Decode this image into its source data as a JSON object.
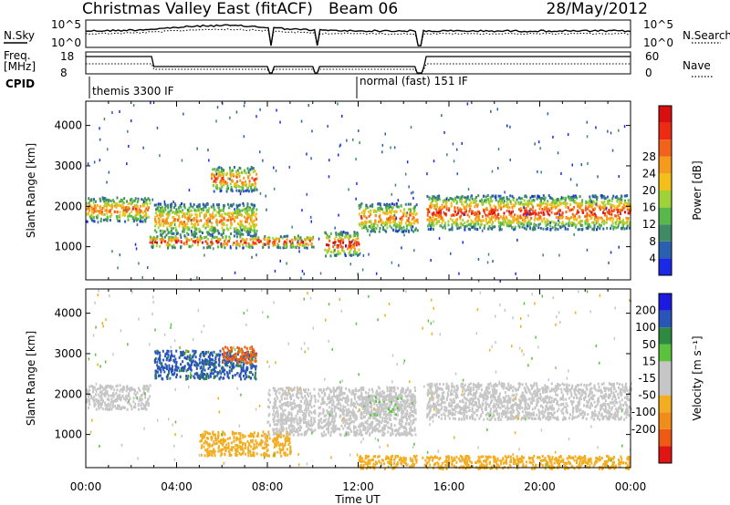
{
  "header": {
    "title": "Christmas Valley East (fitACF)",
    "beam": "Beam 06",
    "date": "28/May/2012"
  },
  "nsky": {
    "left_label": "N.Sky",
    "right_label": "N.Search",
    "left_ticks": [
      "10^5",
      "10^0"
    ],
    "right_ticks": [
      "10^5",
      "10^0"
    ]
  },
  "freq": {
    "left_label_1": "Freq.",
    "left_label_2": "[MHz]",
    "right_label": "Nave",
    "left_ticks": [
      "18",
      "8"
    ],
    "right_ticks": [
      "60",
      "0"
    ]
  },
  "cpid": {
    "label": "CPID",
    "modes": [
      {
        "start_hour": 0.0,
        "text": "themis 3300 IF"
      },
      {
        "start_hour": 12.0,
        "text": "normal (fast) 151 IF"
      }
    ]
  },
  "time_axis": {
    "label": "Time UT",
    "ticks": [
      "00:00",
      "04:00",
      "08:00",
      "12:00",
      "16:00",
      "20:00",
      "00:00"
    ],
    "range_hours": [
      0,
      24
    ]
  },
  "colors": {
    "power_scale": [
      "#1a29e6",
      "#2b5fb0",
      "#3f8a64",
      "#58b84a",
      "#9fd236",
      "#f2c018",
      "#f59a1a",
      "#f2621a",
      "#ee2a14",
      "#d90e0e"
    ],
    "velocity_scale": [
      "#e11414",
      "#ee5a16",
      "#f08c1a",
      "#f3ad20",
      "#c6c6c6",
      "#c6c6c6",
      "#5cc23c",
      "#2e8a40",
      "#2a55b8",
      "#1c1ae0"
    ]
  },
  "chart_data": [
    {
      "type": "heatmap",
      "name": "power",
      "ylabel": "Slant Range [km]",
      "yticks": [
        1000,
        2000,
        3000,
        4000
      ],
      "ylim": [
        180,
        4600
      ],
      "xlim": [
        0,
        24
      ],
      "colorbar": {
        "label": "Power [dB]",
        "ticks": [
          4,
          8,
          12,
          16,
          20,
          24,
          28
        ],
        "range": [
          0,
          32
        ]
      },
      "echo_bands": [
        {
          "hours": [
            0.0,
            2.8
          ],
          "range_km": [
            1650,
            2250
          ],
          "peak_db": 22
        },
        {
          "hours": [
            2.8,
            10.0
          ],
          "range_km": [
            1000,
            1300
          ],
          "peak_db": 28
        },
        {
          "hours": [
            3.0,
            7.5
          ],
          "range_km": [
            1300,
            2100
          ],
          "peak_db": 20
        },
        {
          "hours": [
            5.5,
            7.5
          ],
          "range_km": [
            2400,
            3000
          ],
          "peak_db": 24
        },
        {
          "hours": [
            10.5,
            12.0
          ],
          "range_km": [
            800,
            1400
          ],
          "peak_db": 28
        },
        {
          "hours": [
            12.0,
            14.7
          ],
          "range_km": [
            1400,
            2100
          ],
          "peak_db": 22
        },
        {
          "hours": [
            15.0,
            24.0
          ],
          "range_km": [
            1450,
            2300
          ],
          "peak_db": 26
        }
      ],
      "data_gaps_hours": [
        [
          8.1,
          8.2
        ],
        [
          10.1,
          10.2
        ],
        [
          14.6,
          14.8
        ]
      ]
    },
    {
      "type": "heatmap",
      "name": "velocity",
      "ylabel": "Slant Range [km]",
      "yticks": [
        1000,
        2000,
        3000,
        4000
      ],
      "ylim": [
        180,
        4600
      ],
      "xlim": [
        0,
        24
      ],
      "colorbar": {
        "label": "Velocity [m s⁻¹]",
        "ticks": [
          200,
          100,
          50,
          15,
          -15,
          -50,
          -100,
          -200
        ],
        "range": [
          -250,
          250
        ]
      },
      "echo_bands": [
        {
          "hours": [
            0.0,
            2.8
          ],
          "range_km": [
            1650,
            2250
          ],
          "velocity": 0
        },
        {
          "hours": [
            3.0,
            7.5
          ],
          "range_km": [
            2400,
            3100
          ],
          "velocity": 180
        },
        {
          "hours": [
            6.0,
            7.5
          ],
          "range_km": [
            2800,
            3200
          ],
          "velocity": -180
        },
        {
          "hours": [
            5.0,
            9.0
          ],
          "range_km": [
            500,
            1100
          ],
          "velocity": -80
        },
        {
          "hours": [
            8.0,
            14.5
          ],
          "range_km": [
            1000,
            2200
          ],
          "velocity": 0
        },
        {
          "hours": [
            12.0,
            14.5
          ],
          "range_km": [
            1500,
            2000
          ],
          "velocity": 40
        },
        {
          "hours": [
            15.0,
            24.0
          ],
          "range_km": [
            1400,
            2300
          ],
          "velocity": 0
        },
        {
          "hours": [
            12.0,
            24.0
          ],
          "range_km": [
            180,
            500
          ],
          "velocity": -80
        }
      ],
      "data_gaps_hours": [
        [
          8.1,
          8.2
        ],
        [
          10.1,
          10.2
        ],
        [
          14.6,
          14.8
        ]
      ]
    }
  ]
}
